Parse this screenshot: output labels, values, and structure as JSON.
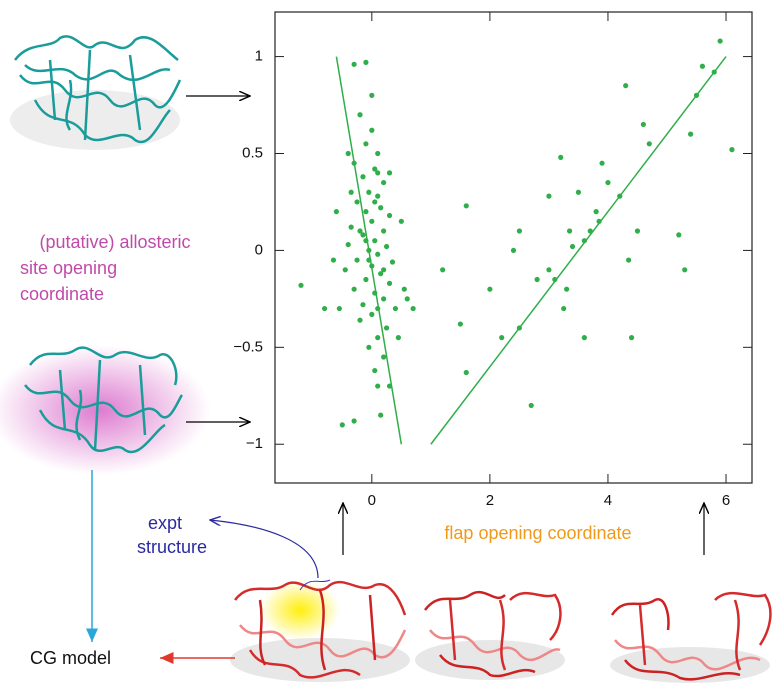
{
  "chart_data": {
    "type": "scatter",
    "x_label": "flap opening coordinate",
    "y_label": [
      "(putative) allosteric",
      "site opening",
      "coordinate"
    ],
    "xlim": [
      -1.64,
      6.44
    ],
    "ylim": [
      -1.2,
      1.23
    ],
    "xticks": [
      0,
      2,
      4,
      6
    ],
    "yticks": [
      {
        "value": -1,
        "label": "−1"
      },
      {
        "value": -0.5,
        "label": "−0.5"
      },
      0,
      0.5,
      1
    ],
    "color": "#2fae4a",
    "x": [
      -0.3,
      -0.1,
      -0.2,
      0,
      -0.1,
      0.1,
      -0.3,
      0.05,
      -0.15,
      0.2,
      -0.05,
      0.1,
      -0.25,
      0.15,
      -0.1,
      0.3,
      0,
      -0.35,
      0.2,
      -0.15,
      0.05,
      -0.4,
      0.25,
      -0.05,
      0.1,
      -0.25,
      0.35,
      0,
      -0.45,
      0.15,
      -0.1,
      0.3,
      -0.3,
      0.05,
      0.2,
      -0.15,
      0.4,
      0,
      -0.2,
      0.25,
      0.1,
      -0.05,
      0.2,
      0.05,
      0.3,
      -0.3,
      -0.5,
      0.15,
      0.1,
      -0.2,
      0.05,
      -0.05,
      0.1,
      -0.1,
      0.2,
      -0.35,
      0.3,
      -0.6,
      -0.55,
      0.55,
      0.6,
      0.5,
      -0.65,
      0.7,
      -1.2,
      -0.8,
      0.45,
      -0.4,
      0,
      0.1,
      1.6,
      1.6,
      1.5,
      1.2,
      2.5,
      2.5,
      2.7,
      2.8,
      3,
      3.1,
      3.2,
      3.25,
      3.35,
      3.4,
      3.5,
      3.6,
      3.7,
      3.8,
      3.85,
      3.9,
      4,
      4.2,
      4.3,
      4.35,
      4.4,
      4.5,
      4.6,
      4.7,
      5.2,
      5.3,
      5.4,
      5.5,
      5.6,
      5.8,
      5.9,
      6.1,
      2.2,
      2.4,
      3,
      2,
      3.6,
      3.3
    ],
    "values": [
      0.96,
      0.97,
      0.7,
      0.62,
      0.55,
      0.5,
      0.45,
      0.42,
      0.38,
      0.35,
      0.3,
      0.28,
      0.25,
      0.22,
      0.2,
      0.18,
      0.15,
      0.12,
      0.1,
      0.08,
      0.05,
      0.03,
      0.02,
      0,
      -0.02,
      -0.05,
      -0.06,
      -0.08,
      -0.1,
      -0.12,
      -0.15,
      -0.17,
      -0.2,
      -0.22,
      -0.25,
      -0.28,
      -0.3,
      -0.33,
      -0.36,
      -0.4,
      -0.45,
      -0.5,
      -0.55,
      -0.62,
      -0.7,
      -0.88,
      -0.9,
      -0.85,
      0.4,
      0.1,
      0.25,
      -0.05,
      -0.3,
      0.05,
      -0.1,
      0.3,
      0.4,
      0.2,
      -0.3,
      -0.2,
      -0.25,
      0.15,
      -0.05,
      -0.3,
      -0.18,
      -0.3,
      -0.45,
      0.5,
      0.8,
      -0.7,
      0.23,
      -0.63,
      -0.38,
      -0.1,
      0.1,
      -0.4,
      -0.8,
      -0.15,
      -0.1,
      -0.15,
      0.48,
      -0.3,
      0.1,
      0.02,
      0.3,
      0.05,
      0.1,
      0.2,
      0.15,
      0.45,
      0.35,
      0.28,
      0.85,
      -0.05,
      -0.45,
      0.1,
      0.65,
      0.55,
      0.08,
      -0.1,
      0.6,
      0.8,
      0.95,
      0.92,
      1.08,
      0.52,
      -0.45,
      0,
      0.28,
      -0.2,
      -0.45,
      -0.2
    ],
    "fit_lines": [
      {
        "x": [
          -0.6,
          0.5
        ],
        "values": [
          1,
          -1
        ]
      },
      {
        "x": [
          1,
          6
        ],
        "values": [
          -1,
          1
        ]
      }
    ]
  },
  "annotations": {
    "expt_structure": [
      "expt",
      "structure"
    ],
    "cg_model": "CG model"
  }
}
